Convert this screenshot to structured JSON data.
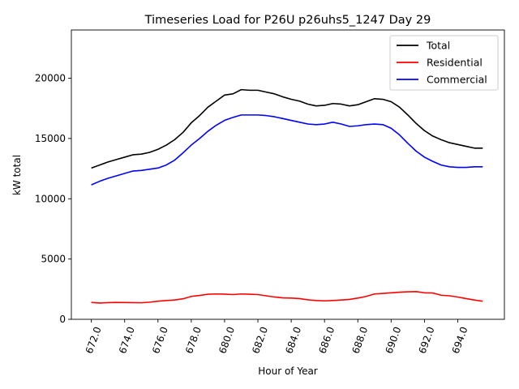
{
  "chart_data": {
    "type": "line",
    "title": "Timeseries Load for P26U p26uhs5_1247  Day 29",
    "xlabel": "Hour of Year",
    "ylabel": "kW total",
    "xlim": [
      670.8,
      696.8
    ],
    "ylim": [
      0,
      24000
    ],
    "x_ticks": [
      "672.0",
      "674.0",
      "676.0",
      "678.0",
      "680.0",
      "682.0",
      "684.0",
      "686.0",
      "688.0",
      "690.0",
      "692.0",
      "694.0"
    ],
    "x_tick_values": [
      672,
      674,
      676,
      678,
      680,
      682,
      684,
      686,
      688,
      690,
      692,
      694
    ],
    "y_ticks": [
      "0",
      "5000",
      "10000",
      "15000",
      "20000"
    ],
    "y_tick_values": [
      0,
      5000,
      10000,
      15000,
      20000
    ],
    "legend_position": "top-right",
    "x": [
      672.0,
      672.5,
      673.0,
      673.5,
      674.0,
      674.5,
      675.0,
      675.5,
      676.0,
      676.5,
      677.0,
      677.5,
      678.0,
      678.5,
      679.0,
      679.5,
      680.0,
      680.5,
      681.0,
      681.5,
      682.0,
      682.5,
      683.0,
      683.5,
      684.0,
      684.5,
      685.0,
      685.5,
      686.0,
      686.5,
      687.0,
      687.5,
      688.0,
      688.5,
      689.0,
      689.5,
      690.0,
      690.5,
      691.0,
      691.5,
      692.0,
      692.5,
      693.0,
      693.5,
      694.0,
      694.5,
      695.0,
      695.5
    ],
    "series": [
      {
        "name": "Total",
        "color": "#000000",
        "values": [
          12550,
          12800,
          13050,
          13250,
          13450,
          13650,
          13700,
          13850,
          14100,
          14450,
          14900,
          15500,
          16300,
          16900,
          17600,
          18100,
          18600,
          18700,
          19050,
          19000,
          19000,
          18850,
          18700,
          18450,
          18250,
          18100,
          17850,
          17700,
          17750,
          17900,
          17850,
          17700,
          17800,
          18050,
          18300,
          18250,
          18050,
          17600,
          16950,
          16250,
          15650,
          15200,
          14900,
          14650,
          14500,
          14350,
          14200,
          14200
        ]
      },
      {
        "name": "Residential",
        "color": "#ff0000",
        "values": [
          1400,
          1350,
          1380,
          1400,
          1390,
          1380,
          1370,
          1420,
          1500,
          1560,
          1600,
          1700,
          1900,
          1980,
          2080,
          2100,
          2090,
          2050,
          2100,
          2080,
          2050,
          1950,
          1850,
          1780,
          1760,
          1720,
          1620,
          1560,
          1530,
          1560,
          1600,
          1650,
          1760,
          1900,
          2100,
          2150,
          2200,
          2250,
          2280,
          2300,
          2200,
          2180,
          2000,
          1950,
          1850,
          1720,
          1600,
          1500
        ]
      },
      {
        "name": "Commercial",
        "color": "#0000ff",
        "values": [
          11150,
          11450,
          11700,
          11900,
          12100,
          12300,
          12350,
          12450,
          12550,
          12800,
          13200,
          13800,
          14450,
          15000,
          15600,
          16100,
          16500,
          16750,
          16950,
          16950,
          16950,
          16900,
          16800,
          16650,
          16500,
          16350,
          16200,
          16150,
          16200,
          16350,
          16200,
          16000,
          16050,
          16150,
          16200,
          16150,
          15850,
          15300,
          14600,
          13950,
          13450,
          13100,
          12800,
          12650,
          12600,
          12600,
          12650,
          12650
        ]
      }
    ]
  }
}
